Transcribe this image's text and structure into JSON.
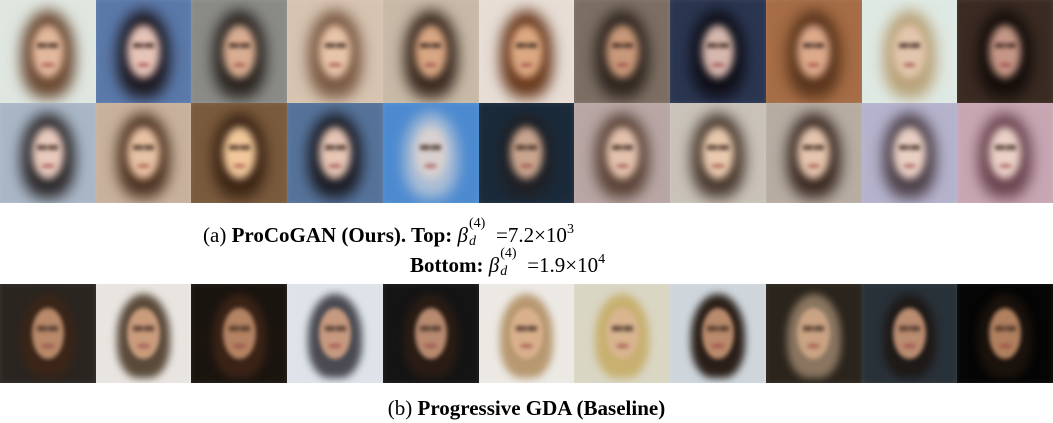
{
  "figure": {
    "caption_a": {
      "prefix": "(a)",
      "title": "ProCoGAN (Ours). Top:",
      "top_formula": {
        "symbol": "β",
        "sub": "d",
        "sup": "(4)",
        "rhs": "=7.2×10",
        "exp": "3"
      },
      "bottom_label": "Bottom:",
      "bottom_formula": {
        "symbol": "β",
        "sub": "d",
        "sup": "(4)",
        "rhs": "=1.9×10",
        "exp": "4"
      }
    },
    "caption_b": {
      "prefix": "(b)",
      "title": "Progressive GDA (Baseline)"
    }
  }
}
